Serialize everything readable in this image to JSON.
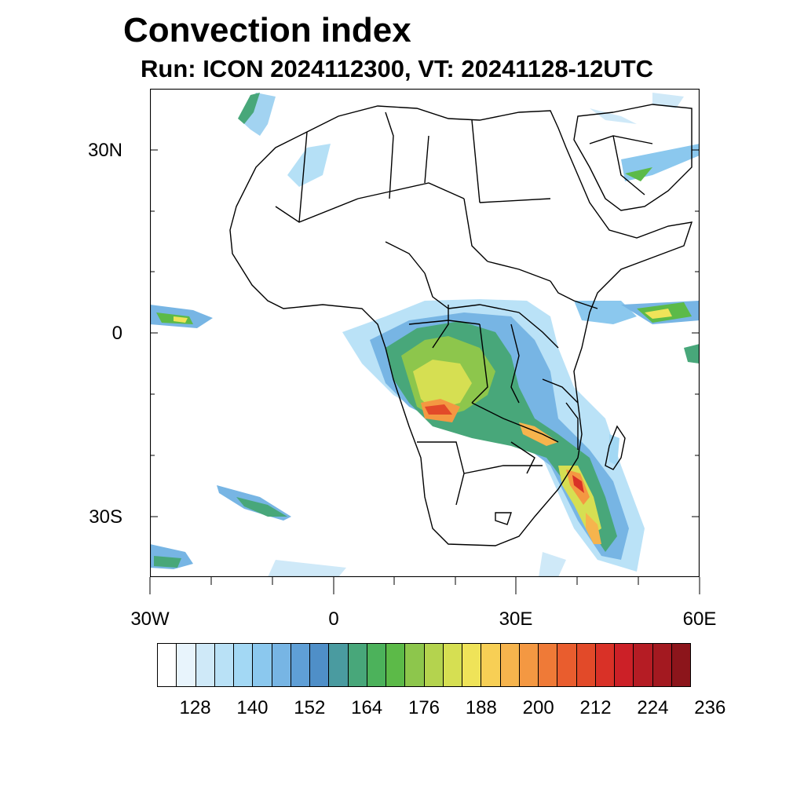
{
  "title": "Convection index",
  "subtitle": "Run: ICON 2024112300,  VT: 20241128-12UTC",
  "map": {
    "extent": {
      "lon_min": -30,
      "lon_max": 60,
      "lat_min": -40,
      "lat_max": 40
    },
    "lat_labels": [
      "30N",
      "0",
      "30S"
    ],
    "lon_labels": [
      "30W",
      "0",
      "30E",
      "60E"
    ]
  },
  "colorbar": {
    "colors": [
      "#ffffff",
      "#e8f4fc",
      "#cfe9f8",
      "#b9e1f6",
      "#a3d8f4",
      "#8bc8ee",
      "#77b5e4",
      "#5f9fd6",
      "#4f8fc8",
      "#4a9ba0",
      "#48a77a",
      "#4cb25b",
      "#5cba48",
      "#8dc64c",
      "#b4d34e",
      "#d6df52",
      "#efe359",
      "#f7cf55",
      "#f6b44d",
      "#f49842",
      "#ef7a37",
      "#e95d2e",
      "#e24a29",
      "#d93127",
      "#cc2027",
      "#b51c24",
      "#a31920",
      "#8c151b"
    ],
    "tick_labels": [
      "128",
      "140",
      "152",
      "164",
      "176",
      "188",
      "200",
      "212",
      "224",
      "236"
    ]
  }
}
